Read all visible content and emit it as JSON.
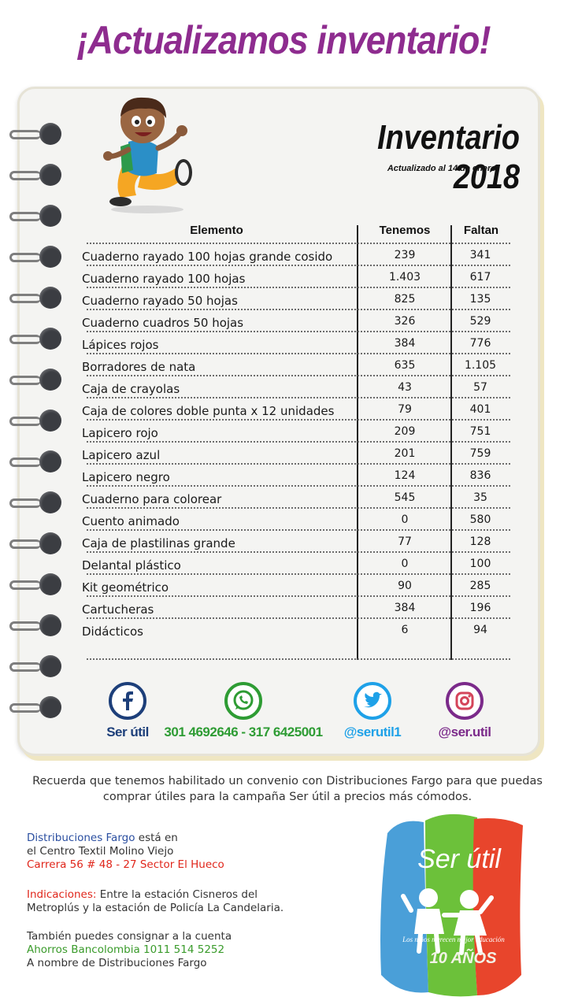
{
  "headline": "¡Actualizamos inventario!",
  "notebook": {
    "title": "Inventario 2018",
    "subtitle": "Actualizado al 14 de enero"
  },
  "table": {
    "headers": {
      "item": "Elemento",
      "have": "Tenemos",
      "need": "Faltan"
    },
    "rows": [
      {
        "item": "Cuaderno rayado 100 hojas grande cosido",
        "have": "239",
        "need": "341"
      },
      {
        "item": "Cuaderno rayado 100 hojas",
        "have": "1.403",
        "need": "617"
      },
      {
        "item": "Cuaderno rayado 50 hojas",
        "have": "825",
        "need": "135"
      },
      {
        "item": "Cuaderno cuadros 50 hojas",
        "have": "326",
        "need": "529"
      },
      {
        "item": "Lápices rojos",
        "have": "384",
        "need": "776"
      },
      {
        "item": "Borradores de nata",
        "have": "635",
        "need": "1.105"
      },
      {
        "item": "Caja de crayolas",
        "have": "43",
        "need": "57"
      },
      {
        "item": "Caja de colores doble punta x 12 unidades",
        "have": "79",
        "need": "401"
      },
      {
        "item": "Lapicero rojo",
        "have": "209",
        "need": "751"
      },
      {
        "item": "Lapicero azul",
        "have": "201",
        "need": "759"
      },
      {
        "item": "Lapicero negro",
        "have": "124",
        "need": "836"
      },
      {
        "item": "Cuaderno para colorear",
        "have": "545",
        "need": "35"
      },
      {
        "item": "Cuento animado",
        "have": "0",
        "need": "580"
      },
      {
        "item": "Caja de plastilinas grande",
        "have": "77",
        "need": "128"
      },
      {
        "item": "Delantal plástico",
        "have": "0",
        "need": "100"
      },
      {
        "item": "Kit geométrico",
        "have": "90",
        "need": "285"
      },
      {
        "item": "Cartucheras",
        "have": "384",
        "need": "196"
      },
      {
        "item": "Didácticos",
        "have": "6",
        "need": "94"
      }
    ]
  },
  "social": {
    "facebook": {
      "icon": "facebook-icon",
      "label": "Ser útil",
      "color": "#1d3f7a"
    },
    "whatsapp": {
      "icon": "whatsapp-icon",
      "label": "301 4692646 - 317 6425001",
      "color": "#2e9c34"
    },
    "twitter": {
      "icon": "twitter-icon",
      "label": "@serutil1",
      "color": "#1ea1e8"
    },
    "instagram": {
      "icon": "instagram-icon",
      "label": "@ser.util",
      "color": "#7b2a8a"
    }
  },
  "note": "Recuerda que tenemos habilitado un convenio con Distribuciones Fargo para que puedas comprar útiles para la campaña Ser útil a precios más cómodos.",
  "info": {
    "company": "Distribuciones Fargo",
    "company_suffix": " está en",
    "location_line": "el Centro Textil Molino Viejo",
    "address": "Carrera 56 # 48 - 27 Sector El Hueco",
    "directions_label": "Indicaciones:",
    "directions_text_1": " Entre la estación Cisneros del",
    "directions_text_2": "Metroplús y la estación de Policía La Candelaria.",
    "deposit_line": "También puedes consignar a la cuenta",
    "account": "Ahorros Bancolombia 1011 514 5252",
    "account_holder": "A nombre de Distribuciones Fargo"
  },
  "logo": {
    "name": "Ser útil",
    "tagline": "Los niños merecen mejor educación",
    "anniversary": "10 AÑOS",
    "colors": [
      "#4a9fd8",
      "#6cc13a",
      "#e8452c"
    ]
  }
}
